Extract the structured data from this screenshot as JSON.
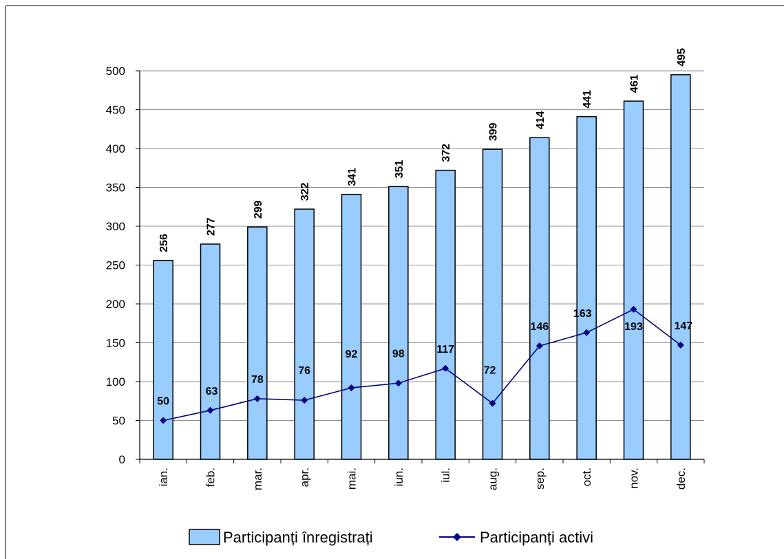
{
  "chart_data": {
    "type": "bar",
    "categories": [
      "ian.",
      "feb.",
      "mar.",
      "apr.",
      "mai.",
      "iun.",
      "iul.",
      "aug.",
      "sep.",
      "oct.",
      "nov.",
      "dec."
    ],
    "series": [
      {
        "name": "Participanți înregistrați",
        "type": "bar",
        "color": "#99ccff",
        "values": [
          256,
          277,
          299,
          322,
          341,
          351,
          372,
          399,
          414,
          441,
          461,
          495
        ],
        "labels": [
          "256",
          "277",
          "299",
          "322",
          "341",
          "351",
          "372",
          "399",
          "414",
          "441",
          "461",
          "495"
        ]
      },
      {
        "name": "Participanți activi",
        "type": "line",
        "color": "#000080",
        "values": [
          50,
          63,
          78,
          76,
          92,
          98,
          117,
          72,
          146,
          163,
          193,
          147
        ],
        "labels": [
          "50",
          "63",
          "78",
          "76",
          "92",
          "98",
          "117",
          "72",
          "146",
          "163",
          "193",
          "147"
        ]
      }
    ],
    "ylim": [
      0,
      500
    ],
    "yticks": [
      "0",
      "50",
      "100",
      "150",
      "200",
      "250",
      "300",
      "350",
      "400",
      "450",
      "500"
    ],
    "grid": true,
    "legend": "bottom"
  }
}
